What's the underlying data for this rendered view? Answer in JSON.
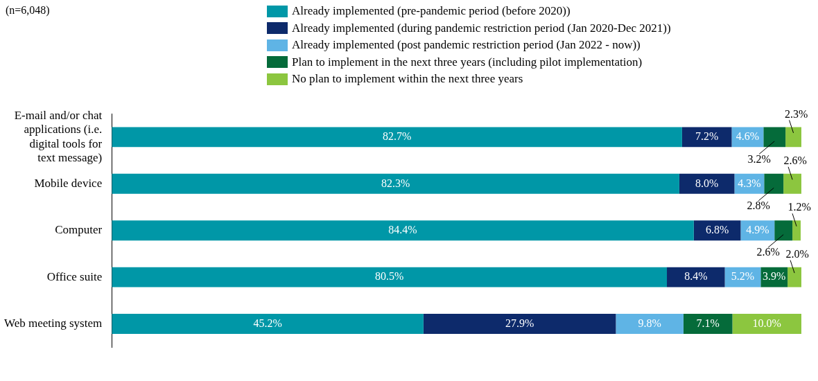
{
  "chart_data": {
    "type": "bar",
    "orientation": "horizontal",
    "stacked": true,
    "categories": [
      "E-mail and/or chat applications (i.e. digital tools for text message)",
      "Mobile device",
      "Computer",
      "Office suite",
      "Web meeting system"
    ],
    "series": [
      {
        "name": "Already implemented (pre-pandemic period (before 2020))",
        "color": "#0097a7",
        "values": [
          82.7,
          82.3,
          84.4,
          80.5,
          45.2
        ],
        "value_labels": [
          "82.7%",
          "82.3%",
          "84.4%",
          "80.5%",
          "45.2%"
        ]
      },
      {
        "name": "Already implemented (during pandemic restriction period (Jan 2020-Dec 2021))",
        "color": "#0d2a6b",
        "values": [
          7.2,
          8.0,
          6.8,
          8.4,
          27.9
        ],
        "value_labels": [
          "7.2%",
          "8.0%",
          "6.8%",
          "8.4%",
          "27.9%"
        ]
      },
      {
        "name": "Already implemented (post pandemic restriction period (Jan 2022 - now))",
        "color": "#5fb4e5",
        "values": [
          4.6,
          4.3,
          4.9,
          5.2,
          9.8
        ],
        "value_labels": [
          "4.6%",
          "4.3%",
          "4.9%",
          "5.2%",
          "9.8%"
        ]
      },
      {
        "name": "Plan to implement in the next three years (including pilot implementation)",
        "color": "#056b3a",
        "values": [
          3.2,
          2.8,
          2.6,
          3.9,
          7.1
        ],
        "value_labels": [
          "3.2%",
          "2.8%",
          "2.6%",
          "3.9%",
          "7.1%"
        ]
      },
      {
        "name": "No plan to implement within the next three years",
        "color": "#8cc63f",
        "values": [
          2.3,
          2.6,
          1.2,
          2.0,
          10.0
        ],
        "value_labels": [
          "2.3%",
          "2.6%",
          "1.2%",
          "2.0%",
          "10.0%"
        ]
      }
    ],
    "tick_labels": "y",
    "legend": "top",
    "annotations": [
      "(n=6,048)"
    ]
  }
}
